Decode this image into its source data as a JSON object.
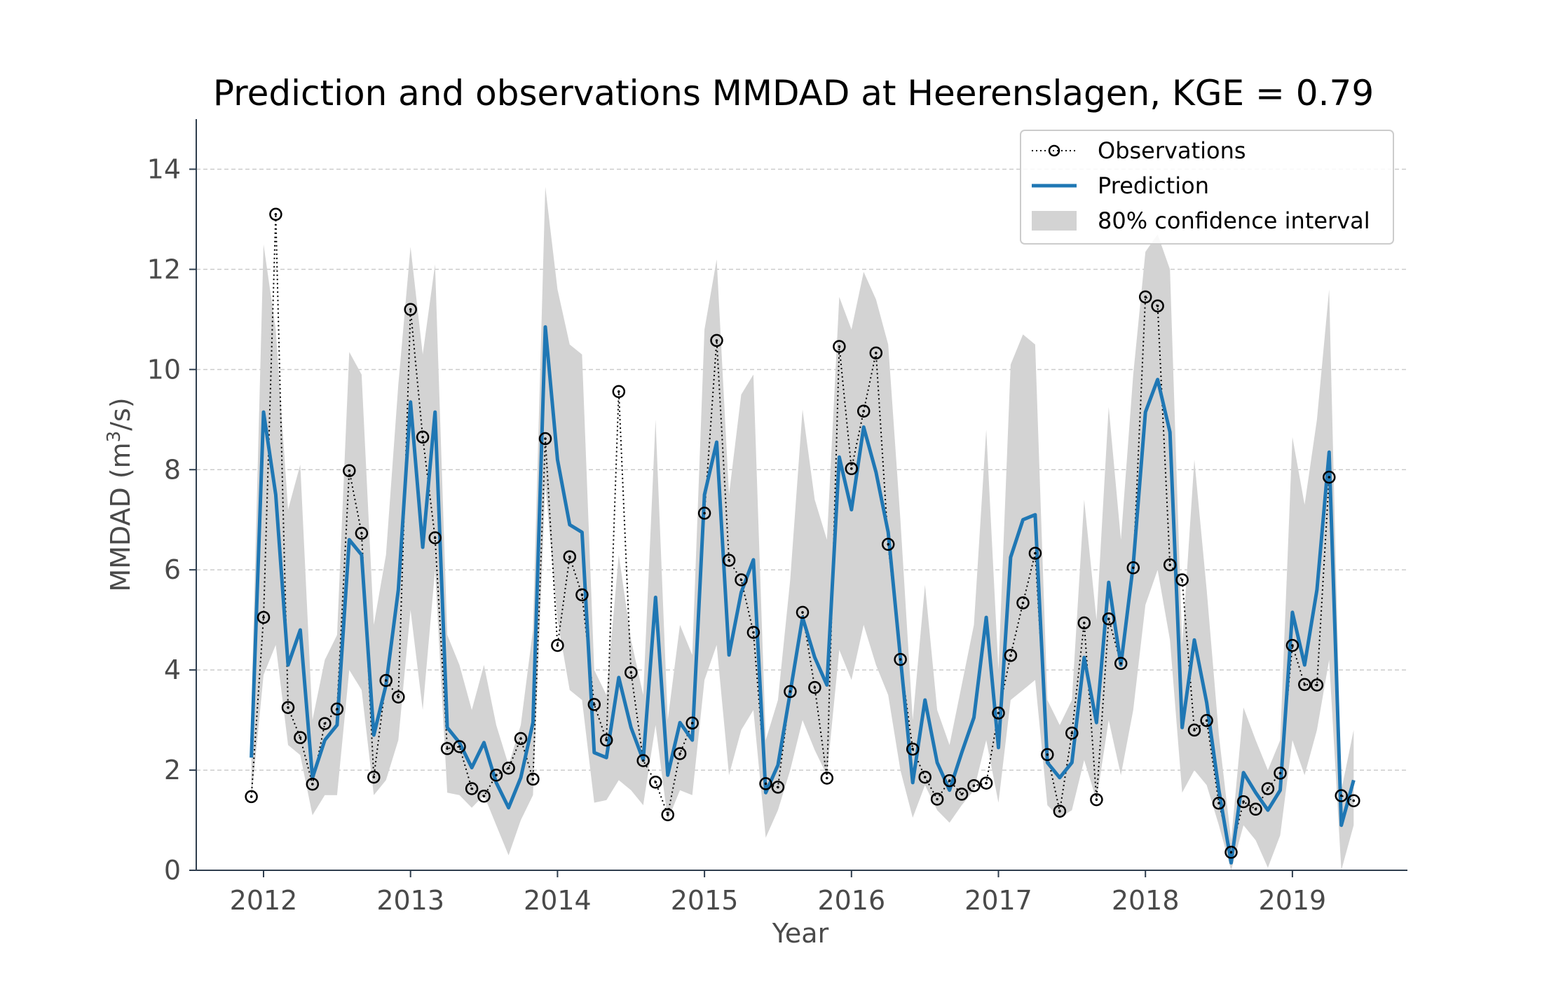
{
  "chart_data": {
    "type": "line",
    "title": "Prediction and observations MMDAD at Heerenslagen, KGE = 0.79",
    "xlabel": "Year",
    "ylabel_main": "MMDAD (m",
    "ylabel_sup": "3",
    "ylabel_tail": "/s)",
    "xlim": [
      2011.55,
      2019.8
    ],
    "ylim": [
      0,
      15
    ],
    "xticks": [
      2012,
      2013,
      2014,
      2015,
      2016,
      2017,
      2018,
      2019
    ],
    "yticks": [
      0,
      2,
      4,
      6,
      8,
      10,
      12,
      14
    ],
    "grid": "horizontal dashed",
    "legend_position": "top-right",
    "legend": [
      {
        "label": "Observations",
        "style": "dotted-circle"
      },
      {
        "label": "Prediction",
        "style": "line"
      },
      {
        "label": "80% confidence interval",
        "style": "band"
      }
    ],
    "colors": {
      "prediction": "#1f77b4",
      "observations": "#000000",
      "band": "#d3d3d3",
      "grid": "#cccccc",
      "axis": "#2f3e4e"
    },
    "x": [
      2011.917,
      2012.0,
      2012.083,
      2012.167,
      2012.25,
      2012.333,
      2012.417,
      2012.5,
      2012.583,
      2012.667,
      2012.75,
      2012.833,
      2012.917,
      2013.0,
      2013.083,
      2013.167,
      2013.25,
      2013.333,
      2013.417,
      2013.5,
      2013.583,
      2013.667,
      2013.75,
      2013.833,
      2013.917,
      2014.0,
      2014.083,
      2014.167,
      2014.25,
      2014.333,
      2014.417,
      2014.5,
      2014.583,
      2014.667,
      2014.75,
      2014.833,
      2014.917,
      2015.0,
      2015.083,
      2015.167,
      2015.25,
      2015.333,
      2015.417,
      2015.5,
      2015.583,
      2015.667,
      2015.75,
      2015.833,
      2015.917,
      2016.0,
      2016.083,
      2016.167,
      2016.25,
      2016.333,
      2016.417,
      2016.5,
      2016.583,
      2016.667,
      2016.75,
      2016.833,
      2016.917,
      2017.0,
      2017.083,
      2017.167,
      2017.25,
      2017.333,
      2017.417,
      2017.5,
      2017.583,
      2017.667,
      2017.75,
      2017.833,
      2017.917,
      2018.0,
      2018.083,
      2018.167,
      2018.25,
      2018.333,
      2018.417,
      2018.5,
      2018.583,
      2018.667,
      2018.75,
      2018.833,
      2018.917,
      2019.0,
      2019.083,
      2019.167,
      2019.25,
      2019.333,
      2019.417
    ],
    "series": [
      {
        "name": "Observations",
        "values": [
          1.47,
          5.05,
          13.1,
          3.25,
          2.65,
          1.72,
          2.93,
          3.22,
          7.98,
          6.73,
          1.86,
          3.79,
          3.46,
          11.2,
          8.65,
          6.64,
          2.43,
          2.47,
          1.63,
          1.48,
          1.9,
          2.04,
          2.63,
          1.82,
          8.62,
          4.49,
          6.26,
          5.5,
          3.31,
          2.6,
          9.56,
          3.95,
          2.19,
          1.76,
          1.11,
          2.33,
          2.94,
          7.13,
          10.58,
          6.19,
          5.8,
          4.75,
          1.73,
          1.66,
          3.57,
          5.15,
          3.65,
          1.84,
          10.46,
          8.02,
          9.17,
          10.33,
          6.51,
          4.21,
          2.42,
          1.86,
          1.42,
          1.79,
          1.52,
          1.69,
          1.74,
          3.14,
          4.29,
          5.34,
          6.33,
          2.31,
          1.18,
          2.74,
          4.94,
          1.41,
          5.02,
          4.13,
          6.04,
          11.45,
          11.27,
          6.1,
          5.8,
          2.8,
          2.99,
          1.34,
          0.36,
          1.37,
          1.22,
          1.63,
          1.94,
          4.49,
          3.71,
          3.7,
          7.85,
          1.49,
          1.39
        ]
      },
      {
        "name": "Prediction",
        "values": [
          2.25,
          9.15,
          7.5,
          4.1,
          4.8,
          1.85,
          2.6,
          2.9,
          6.6,
          6.3,
          2.7,
          3.7,
          5.6,
          9.35,
          6.45,
          9.15,
          2.85,
          2.55,
          2.05,
          2.55,
          1.75,
          1.25,
          1.85,
          2.95,
          10.85,
          8.2,
          6.9,
          6.75,
          2.35,
          2.25,
          3.85,
          2.85,
          2.2,
          5.45,
          1.9,
          2.95,
          2.6,
          7.5,
          8.55,
          4.3,
          5.55,
          6.2,
          1.55,
          2.1,
          3.55,
          5.05,
          4.25,
          3.7,
          8.25,
          7.2,
          8.85,
          7.95,
          6.75,
          4.25,
          1.75,
          3.4,
          2.15,
          1.6,
          2.35,
          3.05,
          5.05,
          2.45,
          6.25,
          7.0,
          7.1,
          2.15,
          1.85,
          2.15,
          4.25,
          2.95,
          5.75,
          4.1,
          6.1,
          9.15,
          9.8,
          8.75,
          2.85,
          4.6,
          3.35,
          1.6,
          0.15,
          1.95,
          1.55,
          1.2,
          1.6,
          5.15,
          4.1,
          5.6,
          8.35,
          0.9,
          1.8
        ]
      },
      {
        "name": "80% confidence interval",
        "lower": [
          1.4,
          3.9,
          4.5,
          2.5,
          2.3,
          1.1,
          1.5,
          1.5,
          4.0,
          3.6,
          1.5,
          1.8,
          2.6,
          5.2,
          3.2,
          6.0,
          1.55,
          1.5,
          1.25,
          1.5,
          0.9,
          0.3,
          1.0,
          1.5,
          7.7,
          5.0,
          3.6,
          3.4,
          1.35,
          1.4,
          1.8,
          1.6,
          1.3,
          2.9,
          1.0,
          1.6,
          1.5,
          3.8,
          4.5,
          1.9,
          2.8,
          3.2,
          0.65,
          1.2,
          2.0,
          3.0,
          2.4,
          1.9,
          4.4,
          3.8,
          4.9,
          4.1,
          3.5,
          2.0,
          1.05,
          1.7,
          1.2,
          0.95,
          1.3,
          1.6,
          2.6,
          1.35,
          3.4,
          3.6,
          3.8,
          1.3,
          1.05,
          1.2,
          2.2,
          1.4,
          3.0,
          1.9,
          3.2,
          5.3,
          6.0,
          4.6,
          1.55,
          2.0,
          1.7,
          0.9,
          0.0,
          0.9,
          0.6,
          0.05,
          0.7,
          2.6,
          1.9,
          2.8,
          4.2,
          0.0,
          0.9
        ],
        "upper": [
          3.2,
          12.5,
          10.8,
          7.2,
          8.1,
          3.0,
          4.2,
          4.7,
          10.35,
          9.9,
          4.9,
          6.3,
          9.7,
          12.45,
          10.3,
          12.1,
          4.7,
          4.1,
          3.2,
          4.1,
          2.9,
          2.1,
          2.9,
          4.8,
          13.65,
          11.6,
          10.5,
          10.3,
          4.0,
          3.5,
          6.3,
          4.6,
          3.5,
          9.0,
          3.0,
          4.9,
          4.3,
          10.8,
          12.2,
          7.5,
          9.5,
          9.9,
          2.6,
          3.4,
          5.8,
          9.2,
          7.4,
          6.6,
          11.45,
          10.8,
          11.95,
          11.4,
          10.5,
          7.0,
          3.0,
          5.7,
          3.2,
          2.5,
          3.7,
          4.9,
          8.8,
          4.0,
          10.1,
          10.7,
          10.5,
          3.4,
          2.9,
          3.4,
          7.4,
          5.0,
          9.25,
          6.6,
          9.9,
          12.35,
          12.7,
          12.0,
          4.5,
          8.2,
          5.6,
          2.7,
          0.6,
          3.25,
          2.6,
          2.0,
          2.6,
          8.65,
          7.3,
          9.0,
          11.6,
          1.6,
          2.8
        ]
      }
    ]
  }
}
